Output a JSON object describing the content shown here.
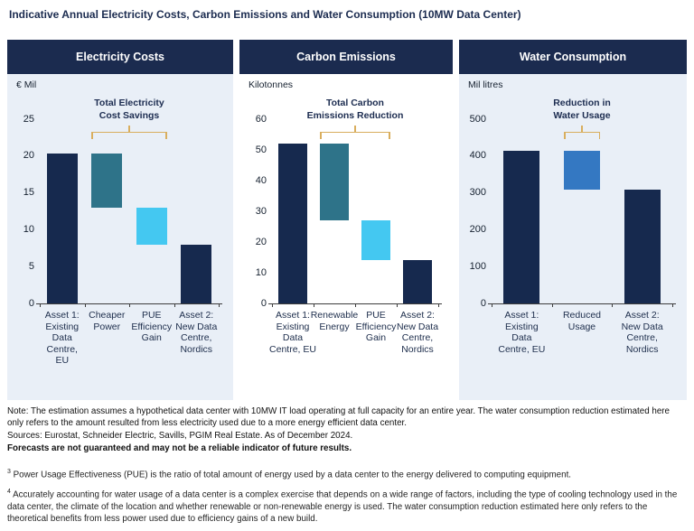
{
  "title": "Indicative Annual Electricity Costs, Carbon Emissions and Water Consumption (10MW Data Center)",
  "colors": {
    "navy": "#16294e",
    "teal": "#2e7389",
    "cyan": "#44c8f1",
    "blue": "#3478c2",
    "header_bg": "#1b2b4f",
    "panel_bg": "#e9eff7",
    "white_bg": "#ffffff",
    "bracket_gold": "#d9ae5e",
    "annotation_navy": "#1c2c50",
    "axis": "#3d3d3d"
  },
  "chart_data": [
    {
      "type": "bar",
      "title": "Electricity Costs",
      "ylabel": "€ Mil",
      "ylim": [
        0,
        25
      ],
      "yticks": [
        0,
        5,
        10,
        15,
        20,
        25
      ],
      "panel_bg": "#e9eff7",
      "categories": [
        "Asset 1:\nExisting\nData\nCentre,\nEU",
        "Cheaper\nPower",
        "PUE\nEfficiency\nGain",
        "Asset 2:\nNew Data\nCentre,\nNordics"
      ],
      "segments": [
        {
          "from": 0,
          "to": 20.4,
          "color": "navy"
        },
        {
          "from": 13,
          "to": 20.4,
          "color": "teal"
        },
        {
          "from": 8,
          "to": 13,
          "color": "cyan"
        },
        {
          "from": 0,
          "to": 8,
          "color": "navy"
        }
      ],
      "annotation": {
        "text": "Total Electricity\nCost Savings",
        "span": [
          1,
          2
        ]
      }
    },
    {
      "type": "bar",
      "title": "Carbon Emissions",
      "ylabel": "Kilotonnes",
      "ylim": [
        0,
        60
      ],
      "yticks": [
        0,
        10,
        20,
        30,
        40,
        50,
        60
      ],
      "panel_bg": "#ffffff",
      "categories": [
        "Asset 1:\nExisting\nData\nCentre, EU",
        "Renewable\nEnergy",
        "PUE\nEfficiency\nGain",
        "Asset 2:\nNew Data\nCentre,\nNordics"
      ],
      "segments": [
        {
          "from": 0,
          "to": 52,
          "color": "navy"
        },
        {
          "from": 27,
          "to": 52,
          "color": "teal"
        },
        {
          "from": 14,
          "to": 27,
          "color": "cyan"
        },
        {
          "from": 0,
          "to": 14,
          "color": "navy"
        }
      ],
      "annotation": {
        "text": "Total Carbon\nEmissions Reduction",
        "span": [
          1,
          2
        ]
      }
    },
    {
      "type": "bar",
      "title": "Water Consumption",
      "ylabel": "Mil litres",
      "ylim": [
        0,
        500
      ],
      "yticks": [
        0,
        100,
        200,
        300,
        400,
        500
      ],
      "panel_bg": "#e9eff7",
      "categories": [
        "Asset 1:\nExisting\nData\nCentre, EU",
        "Reduced\nUsage",
        "Asset 2:\nNew Data\nCentre,\nNordics"
      ],
      "segments": [
        {
          "from": 0,
          "to": 415,
          "color": "navy"
        },
        {
          "from": 310,
          "to": 415,
          "color": "blue"
        },
        {
          "from": 0,
          "to": 310,
          "color": "navy"
        }
      ],
      "annotation": {
        "text": "Reduction in\nWater Usage",
        "span": [
          1,
          1
        ]
      }
    }
  ],
  "notes": {
    "note": "Note: The estimation assumes a hypothetical data center with 10MW IT load operating at full capacity for an entire year. The water consumption reduction estimated here only refers to the amount resulted from less electricity used due to a more energy efficient data center.",
    "sources": "Sources: Eurostat, Schneider Electric, Savills, PGIM Real Estate. As of December 2024.",
    "disclaimer": "Forecasts are not guaranteed and may not be a reliable indicator of future results."
  },
  "footnotes": [
    {
      "sup": "3",
      "text": "Power Usage Effectiveness (PUE) is the ratio of total amount of energy used by a data center to the energy delivered to computing equipment."
    },
    {
      "sup": "4",
      "text": "Accurately accounting for water usage of a data center is a complex exercise that depends on a wide range of factors, including the type of cooling technology used in the data center, the climate of the location and whether renewable or non-renewable energy is used. The water consumption reduction estimated here only refers to the theoretical benefits from less power used due to efficiency gains of a new build."
    }
  ]
}
